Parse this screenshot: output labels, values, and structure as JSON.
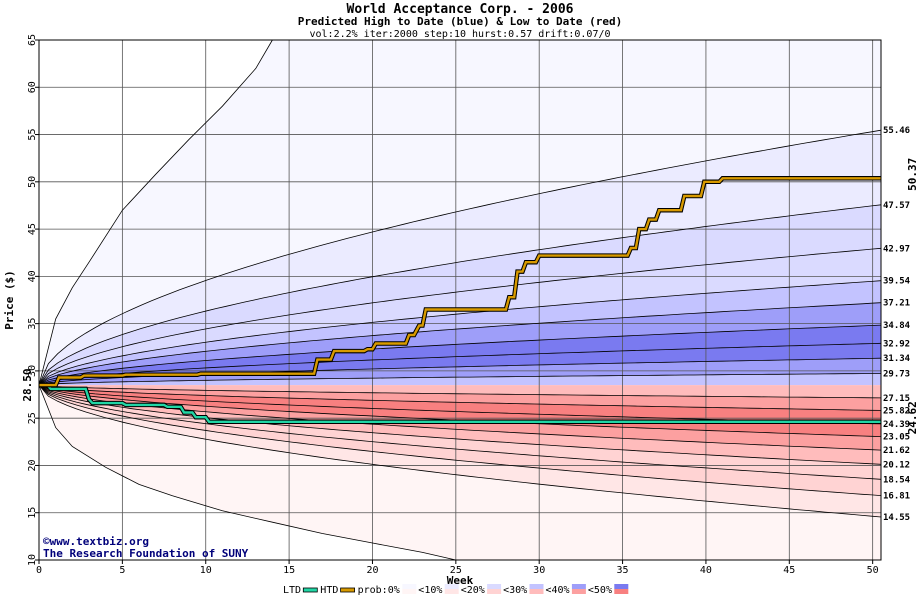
{
  "chart_data": {
    "type": "line",
    "title": "World Acceptance Corp. - 2006",
    "subtitle": "Predicted High to Date (blue) &  Low to Date (red)",
    "params": "vol:2.2% iter:2000 step:10 hurst:0.57 drift:0.07/0",
    "xlabel": "Week",
    "ylabel": "Price ($)",
    "xlim": [
      0,
      50.5
    ],
    "ylim": [
      10,
      65
    ],
    "xticks": [
      0,
      5,
      10,
      15,
      20,
      25,
      30,
      35,
      40,
      45,
      50
    ],
    "yticks": [
      10,
      15,
      20,
      25,
      30,
      35,
      40,
      45,
      50,
      55,
      60,
      65
    ],
    "start_price": 28.5,
    "start_price_label": "28.50",
    "grid": true,
    "upper_bands": [
      {
        "end": 55.46,
        "label": "55.46"
      },
      {
        "end": 47.57,
        "label": "47.57"
      },
      {
        "end": 42.97,
        "label": "42.97"
      },
      {
        "end": 39.54,
        "label": "39.54"
      },
      {
        "end": 37.21,
        "label": "37.21"
      },
      {
        "end": 34.84,
        "label": "34.84"
      },
      {
        "end": 32.92,
        "label": "32.92"
      },
      {
        "end": 31.34,
        "label": "31.34"
      },
      {
        "end": 29.73,
        "label": "29.73"
      }
    ],
    "lower_bands": [
      {
        "end": 27.15,
        "label": "27.15"
      },
      {
        "end": 25.82,
        "label": "25.82"
      },
      {
        "end": 24.39,
        "label": "24.39"
      },
      {
        "end": 23.05,
        "label": "23.05"
      },
      {
        "end": 21.62,
        "label": "21.62"
      },
      {
        "end": 20.12,
        "label": "20.12"
      },
      {
        "end": 18.54,
        "label": "18.54"
      },
      {
        "end": 16.81,
        "label": "16.81"
      },
      {
        "end": 14.55,
        "label": "14.55"
      }
    ],
    "upper_outer_curve": {
      "x": [
        0,
        1,
        2,
        3,
        5,
        7,
        9,
        11,
        13,
        14
      ],
      "y": [
        28.5,
        35.5,
        38.8,
        41.5,
        47,
        50.8,
        54.5,
        58,
        62,
        65
      ]
    },
    "lower_outer_curve": {
      "x": [
        0,
        1,
        2,
        4,
        6,
        8,
        11,
        14,
        17,
        20,
        23,
        25
      ],
      "y": [
        28.5,
        24,
        22,
        19.8,
        18,
        16.8,
        15.2,
        14,
        12.8,
        11.8,
        10.8,
        10
      ]
    },
    "high_to_date": {
      "name": "HTD",
      "final": 50.37,
      "final_label": "50.37",
      "x": [
        0,
        1,
        1.2,
        2.5,
        2.7,
        5,
        5.2,
        9.5,
        9.7,
        16.5,
        16.7,
        17.5,
        17.7,
        19.5,
        19.7,
        20,
        20.2,
        22,
        22.2,
        22.5,
        22.8,
        23,
        23.2,
        28,
        28.2,
        28.5,
        28.7,
        29,
        29.2,
        29.8,
        30,
        35.3,
        35.5,
        35.8,
        36,
        36.4,
        36.6,
        37,
        37.2,
        38.5,
        38.7,
        39.7,
        39.9,
        40.8,
        41,
        50.5
      ],
      "y": [
        28.5,
        28.5,
        29.3,
        29.3,
        29.5,
        29.5,
        29.6,
        29.6,
        29.7,
        29.7,
        31.2,
        31.2,
        32.1,
        32.1,
        32.3,
        32.3,
        32.9,
        32.9,
        33.8,
        33.8,
        34.8,
        34.8,
        36.5,
        36.5,
        37.8,
        37.8,
        40.5,
        40.5,
        41.5,
        41.5,
        42.2,
        42.2,
        43,
        43,
        45,
        45,
        46,
        46,
        47,
        47,
        48.5,
        48.5,
        50,
        50,
        50.37,
        50.37
      ]
    },
    "low_to_date": {
      "name": "LTD",
      "final": 24.62,
      "final_label": "24.62",
      "x": [
        0,
        0.5,
        0.7,
        2.8,
        3,
        3.2,
        5,
        5.2,
        7.5,
        7.7,
        8.5,
        8.7,
        9.2,
        9.4,
        10,
        10.2,
        50.5
      ],
      "y": [
        28.5,
        28.5,
        28.1,
        28.1,
        27,
        26.6,
        26.6,
        26.4,
        26.4,
        26.2,
        26.2,
        25.6,
        25.6,
        25.1,
        25.1,
        24.62,
        24.62
      ]
    },
    "legend": {
      "items": [
        "LTD",
        "HTD",
        "prob:0%",
        "<10%",
        "<20%",
        "<30%",
        "<40%",
        "<50%"
      ],
      "line_colors": {
        "LTD": "#21d6a5",
        "HTD": "#d89a00"
      },
      "band_colors_blue": [
        "#f7f7ff",
        "#ebebff",
        "#dadaff",
        "#c3c3ff",
        "#9e9ef9",
        "#7a7af0"
      ],
      "band_colors_red": [
        "#fff5f5",
        "#ffe6e6",
        "#ffd3d3",
        "#ffbcbc",
        "#fca0a0",
        "#f88080"
      ]
    }
  },
  "credits": {
    "site": "©www.textbiz.org",
    "org": "The Research Foundation of SUNY"
  }
}
